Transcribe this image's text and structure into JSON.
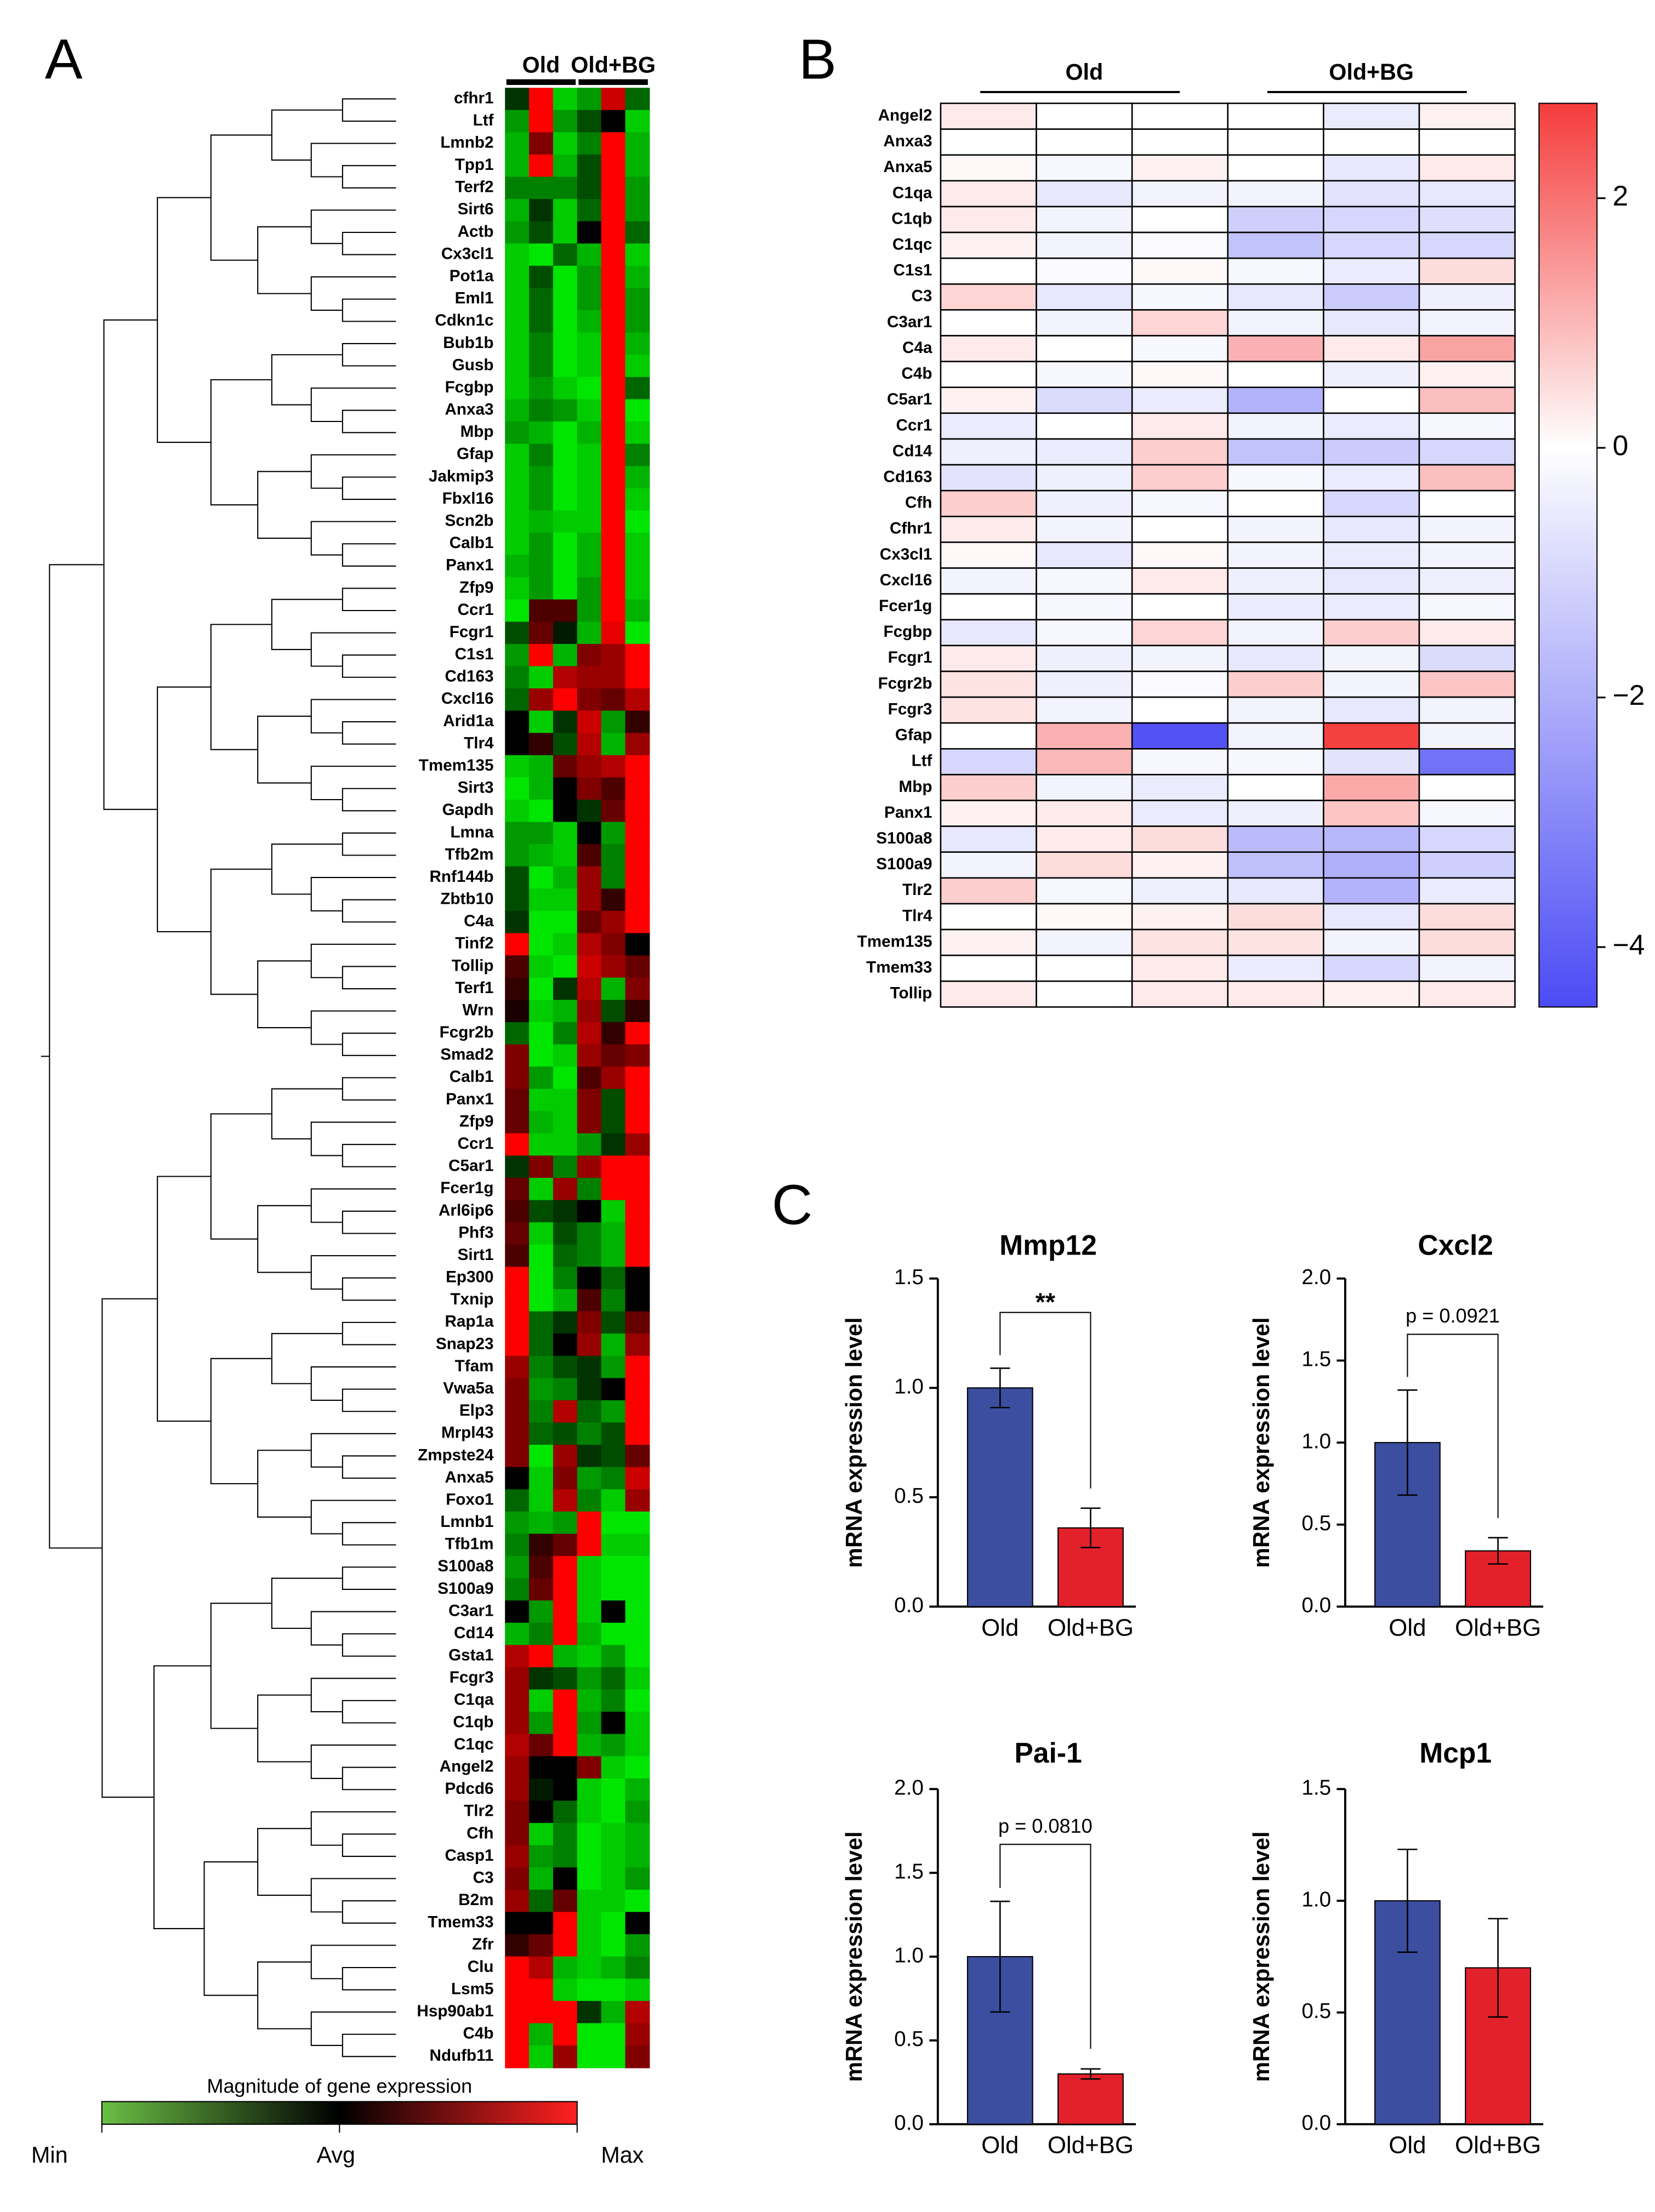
{
  "chart_data": [
    {
      "type": "heatmap",
      "panel_label": "A",
      "column_groups": [
        "Old",
        "Old+BG"
      ],
      "rows": [
        "cfhr1",
        "Ltf",
        "Lmnb2",
        "Tpp1",
        "Terf2",
        "Sirt6",
        "Actb",
        "Cx3cl1",
        "Pot1a",
        "Eml1",
        "Cdkn1c",
        "Bub1b",
        "Gusb",
        "Fcgbp",
        "Anxa3",
        "Mbp",
        "Gfap",
        "Jakmip3",
        "Fbxl16",
        "Scn2b",
        "Calb1",
        "Panx1",
        "Zfp9",
        "Ccr1",
        "Fcgr1",
        "C1s1",
        "Cd163",
        "Cxcl16",
        "Arid1a",
        "Tlr4",
        "Tmem135",
        "Sirt3",
        "Gapdh",
        "Lmna",
        "Tfb2m",
        "Rnf144b",
        "Zbtb10",
        "C4a",
        "Tinf2",
        "Tollip",
        "Terf1",
        "Wrn",
        "Fcgr2b",
        "Smad2",
        "Calb1",
        "Panx1",
        "Zfp9",
        "Ccr1",
        "C5ar1",
        "Fcer1g",
        "Arl6ip6",
        "Phf3",
        "Sirt1",
        "Ep300",
        "Txnip",
        "Rap1a",
        "Snap23",
        "Tfam",
        "Vwa5a",
        "Elp3",
        "Mrpl43",
        "Zmpste24",
        "Anxa5",
        "Foxo1",
        "Lmnb1",
        "Tfb1m",
        "S100a8",
        "S100a9",
        "C3ar1",
        "Cd14",
        "Gsta1",
        "Fcgr3",
        "C1qa",
        "C1qb",
        "C1qc",
        "Angel2",
        "Pdcd6",
        "Tlr2",
        "Cfh",
        "Casp1",
        "C3",
        "B2m",
        "Tmem33",
        "Zfr",
        "Clu",
        "Lsm5",
        "Hsp90ab1",
        "C4b",
        "Ndufb11"
      ],
      "values": [
        [
          -0.2,
          1,
          -0.8,
          -0.6,
          0.8,
          -0.4
        ],
        [
          -0.6,
          1,
          -0.6,
          -0.3,
          0,
          -0.8
        ],
        [
          -0.7,
          0.5,
          -0.8,
          -0.5,
          1,
          -0.7
        ],
        [
          -0.7,
          1,
          -0.7,
          -0.3,
          1,
          -0.7
        ],
        [
          -0.5,
          -0.5,
          -0.5,
          -0.3,
          1,
          -0.6
        ],
        [
          -0.7,
          -0.2,
          -0.8,
          -0.4,
          1,
          -0.6
        ],
        [
          -0.6,
          -0.3,
          -0.8,
          0,
          1,
          -0.4
        ],
        [
          -0.8,
          -0.9,
          -0.4,
          -0.7,
          1,
          -0.8
        ],
        [
          -0.8,
          -0.3,
          -0.9,
          -0.6,
          1,
          -0.7
        ],
        [
          -0.8,
          -0.4,
          -0.9,
          -0.6,
          1,
          -0.6
        ],
        [
          -0.8,
          -0.4,
          -0.9,
          -0.7,
          1,
          -0.6
        ],
        [
          -0.8,
          -0.5,
          -0.9,
          -0.8,
          1,
          -0.7
        ],
        [
          -0.8,
          -0.5,
          -0.9,
          -0.8,
          1,
          -0.8
        ],
        [
          -0.8,
          -0.6,
          -0.8,
          -0.9,
          1,
          -0.4
        ],
        [
          -0.7,
          -0.5,
          -0.6,
          -0.8,
          1,
          -0.9
        ],
        [
          -0.6,
          -0.7,
          -0.9,
          -0.7,
          1,
          -0.8
        ],
        [
          -0.8,
          -0.5,
          -0.9,
          -0.8,
          1,
          -0.5
        ],
        [
          -0.8,
          -0.6,
          -0.9,
          -0.8,
          1,
          -0.7
        ],
        [
          -0.8,
          -0.6,
          -0.9,
          -0.8,
          1,
          -0.8
        ],
        [
          -0.8,
          -0.7,
          -0.8,
          -0.8,
          1,
          -0.9
        ],
        [
          -0.8,
          -0.6,
          -0.9,
          -0.7,
          1,
          -0.8
        ],
        [
          -0.7,
          -0.6,
          -0.9,
          -0.7,
          1,
          -0.8
        ],
        [
          -0.8,
          -0.6,
          -0.9,
          -0.6,
          1,
          -0.8
        ],
        [
          -0.9,
          0.3,
          0.3,
          -0.6,
          1,
          -0.7
        ],
        [
          -0.3,
          0.4,
          -0.1,
          -0.7,
          0.9,
          -0.9
        ],
        [
          -0.6,
          1,
          -0.7,
          0.5,
          0.6,
          1
        ],
        [
          -0.5,
          -0.8,
          0.7,
          0.6,
          0.6,
          1
        ],
        [
          -0.4,
          0.6,
          1,
          0.5,
          0.4,
          0.7
        ],
        [
          0,
          -0.8,
          -0.2,
          0.8,
          -0.6,
          0.2
        ],
        [
          0,
          0.2,
          -0.3,
          0.7,
          -0.7,
          0.6
        ],
        [
          -0.8,
          -0.7,
          0.4,
          0.6,
          0.7,
          1
        ],
        [
          -0.9,
          -0.7,
          0,
          0.5,
          0.3,
          1
        ],
        [
          -0.8,
          -0.9,
          0,
          -0.2,
          0.4,
          1
        ],
        [
          -0.6,
          -0.6,
          -0.8,
          0,
          -0.6,
          1
        ],
        [
          -0.6,
          -0.7,
          -0.8,
          0.3,
          -0.5,
          1
        ],
        [
          -0.3,
          -0.9,
          -0.7,
          0.6,
          -0.5,
          1
        ],
        [
          -0.3,
          -0.8,
          -0.8,
          0.6,
          0.2,
          1
        ],
        [
          -0.2,
          -0.9,
          -0.9,
          0.4,
          0.6,
          1
        ],
        [
          1,
          -0.9,
          -0.8,
          0.7,
          0.5,
          0
        ],
        [
          0.3,
          -0.8,
          -0.9,
          0.8,
          0.6,
          0.4
        ],
        [
          0.2,
          -0.9,
          -0.2,
          0.7,
          -0.7,
          0.5
        ],
        [
          0.1,
          -0.8,
          -0.7,
          0.6,
          -0.3,
          0.2
        ],
        [
          -0.4,
          -0.9,
          -0.5,
          0.7,
          0.2,
          1
        ],
        [
          0.5,
          -0.9,
          -0.8,
          0.6,
          0.4,
          0.5
        ],
        [
          0.5,
          -0.6,
          -0.9,
          0.3,
          0.6,
          1
        ],
        [
          0.4,
          -0.8,
          -0.8,
          0.5,
          -0.3,
          1
        ],
        [
          0.4,
          -0.7,
          -0.8,
          0.5,
          -0.3,
          1
        ],
        [
          1,
          -0.8,
          -0.8,
          -0.6,
          -0.2,
          0.6
        ],
        [
          -0.2,
          0.5,
          -0.5,
          0.6,
          1,
          1
        ],
        [
          0.4,
          -0.8,
          0.6,
          -0.5,
          1,
          1
        ],
        [
          0.3,
          -0.3,
          -0.2,
          0,
          -0.8,
          1
        ],
        [
          0.4,
          -0.8,
          -0.3,
          -0.5,
          -0.7,
          1
        ],
        [
          0.3,
          -0.9,
          -0.4,
          -0.5,
          -0.7,
          1
        ],
        [
          1,
          -0.9,
          -0.5,
          0,
          -0.4,
          0
        ],
        [
          1,
          -0.9,
          -0.7,
          0.3,
          -0.5,
          0
        ],
        [
          1,
          -0.4,
          -0.2,
          0.5,
          -0.3,
          0.4
        ],
        [
          1,
          -0.4,
          0,
          0.6,
          -0.7,
          0.6
        ],
        [
          0.6,
          -0.5,
          -0.3,
          -0.2,
          -0.6,
          1
        ],
        [
          0.5,
          -0.6,
          -0.5,
          -0.2,
          0,
          1
        ],
        [
          0.5,
          -0.5,
          0.7,
          -0.4,
          -0.6,
          1
        ],
        [
          0.5,
          -0.4,
          -0.3,
          -0.5,
          -0.3,
          1
        ],
        [
          0.5,
          -0.9,
          0.6,
          -0.2,
          -0.3,
          0.4
        ],
        [
          0,
          -0.8,
          0.5,
          -0.6,
          -0.5,
          0.8
        ],
        [
          -0.4,
          -0.8,
          0.7,
          -0.5,
          -0.8,
          0.6
        ],
        [
          -0.6,
          -0.7,
          -0.6,
          1,
          -0.9,
          -0.9
        ],
        [
          -0.5,
          0.2,
          0.4,
          1,
          -0.8,
          -0.8
        ],
        [
          -0.6,
          0.3,
          1,
          -0.8,
          -0.9,
          -0.9
        ],
        [
          -0.5,
          0.4,
          1,
          -0.8,
          -0.9,
          -0.9
        ],
        [
          0,
          -0.6,
          1,
          -0.8,
          0,
          -0.9
        ],
        [
          -0.7,
          -0.5,
          1,
          -0.7,
          -0.9,
          -0.9
        ],
        [
          0.7,
          1,
          -0.7,
          -0.8,
          -0.6,
          -0.9
        ],
        [
          0.6,
          -0.2,
          -0.3,
          -0.6,
          -0.4,
          -0.8
        ],
        [
          0.6,
          -0.8,
          1,
          -0.7,
          -0.5,
          -0.9
        ],
        [
          0.6,
          -0.6,
          1,
          -0.6,
          0,
          -0.8
        ],
        [
          0.7,
          0.4,
          1,
          -0.7,
          -0.6,
          -0.8
        ],
        [
          0.6,
          0,
          0,
          0.5,
          -0.8,
          -0.9
        ],
        [
          0.6,
          -0.1,
          0,
          -0.8,
          -0.9,
          -0.7
        ],
        [
          0.5,
          0,
          -0.4,
          -0.8,
          -0.9,
          -0.6
        ],
        [
          0.5,
          -0.8,
          -0.5,
          -0.9,
          -0.8,
          -0.7
        ],
        [
          0.6,
          -0.6,
          -0.5,
          -0.9,
          -0.8,
          -0.7
        ],
        [
          0.5,
          -0.7,
          0,
          -0.9,
          -0.8,
          -0.6
        ],
        [
          0.6,
          -0.4,
          0.4,
          -0.8,
          -0.8,
          -0.9
        ],
        [
          0,
          0,
          1,
          -0.8,
          -0.9,
          0
        ],
        [
          0.2,
          0.4,
          1,
          -0.8,
          -0.9,
          -0.6
        ],
        [
          1,
          0.7,
          -0.7,
          -0.8,
          -0.7,
          -0.5
        ],
        [
          1,
          1,
          -0.8,
          -0.9,
          -0.9,
          -0.8
        ],
        [
          1,
          1,
          1,
          -0.2,
          -0.7,
          0.7
        ],
        [
          1,
          -0.7,
          1,
          -0.9,
          -0.9,
          0.6
        ],
        [
          1,
          -0.8,
          0.6,
          -0.9,
          -0.9,
          0.5
        ]
      ],
      "highlighted_rows": [
        36,
        37,
        42,
        73,
        74,
        84,
        85
      ],
      "highlight_color": "#e8141c",
      "colors": [
        "#00ff00",
        "#000000",
        "#ff0000"
      ],
      "clim": [
        -1,
        1
      ],
      "cell_border": false,
      "dendrogram": true,
      "colorbar": {
        "orientation": "horizontal",
        "title": "Magnitude of gene expression",
        "labels": [
          "Min",
          "Avg",
          "Max"
        ],
        "colors": [
          "#6abf45",
          "#000000",
          "#ff2020"
        ]
      }
    },
    {
      "type": "heatmap",
      "panel_label": "B",
      "column_groups": [
        "Old",
        "Old+BG"
      ],
      "rows": [
        "Angel2",
        "Anxa3",
        "Anxa5",
        "C1qa",
        "C1qb",
        "C1qc",
        "C1s1",
        "C3",
        "C3ar1",
        "C4a",
        "C4b",
        "C5ar1",
        "Ccr1",
        "Cd14",
        "Cd163",
        "Cfh",
        "Cfhr1",
        "Cx3cl1",
        "Cxcl16",
        "Fcer1g",
        "Fcgbp",
        "Fcgr1",
        "Fcgr2b",
        "Fcgr3",
        "Gfap",
        "Ltf",
        "Mbp",
        "Panx1",
        "S100a8",
        "S100a9",
        "Tlr2",
        "Tlr4",
        "Tmem135",
        "Tmem33",
        "Tollip"
      ],
      "values": [
        [
          0.3,
          0,
          0,
          0,
          -0.5,
          0.2
        ],
        [
          0,
          0,
          0,
          0,
          0,
          0
        ],
        [
          0.1,
          -0.2,
          0.2,
          0,
          -0.6,
          0.3
        ],
        [
          0.3,
          -0.6,
          -0.3,
          -0.3,
          -0.7,
          -0.6
        ],
        [
          0.3,
          -0.3,
          0,
          -1.2,
          -1,
          -0.8
        ],
        [
          0.2,
          -0.3,
          -0.1,
          -1.5,
          -1,
          -1
        ],
        [
          0,
          -0.1,
          0.1,
          -0.2,
          -0.5,
          0.5
        ],
        [
          0.6,
          -0.6,
          -0.2,
          -0.6,
          -1.3,
          -0.4
        ],
        [
          0,
          -0.3,
          0.6,
          -0.3,
          -0.6,
          -0.3
        ],
        [
          0.3,
          0,
          -0.2,
          1.1,
          0.3,
          1.3
        ],
        [
          0,
          -0.2,
          0.1,
          0,
          -0.4,
          0.2
        ],
        [
          0.2,
          -0.9,
          -0.5,
          -1.9,
          0,
          0.9
        ],
        [
          -0.5,
          0,
          0.3,
          -0.3,
          -0.5,
          -0.2
        ],
        [
          -0.4,
          -0.5,
          0.7,
          -1.5,
          -1.3,
          -1
        ],
        [
          -0.7,
          -0.4,
          0.7,
          -0.2,
          -0.5,
          0.9
        ],
        [
          0.7,
          -0.4,
          -0.2,
          0,
          -1,
          0
        ],
        [
          0.3,
          -0.3,
          0,
          -0.3,
          -0.6,
          -0.3
        ],
        [
          0.1,
          -0.6,
          0.1,
          -0.3,
          -0.5,
          -0.3
        ],
        [
          -0.3,
          -0.2,
          0.3,
          -0.4,
          -0.6,
          -0.4
        ],
        [
          0,
          -0.2,
          0,
          -0.5,
          -0.5,
          -0.2
        ],
        [
          -0.6,
          -0.2,
          0.6,
          -0.3,
          0.7,
          0.3
        ],
        [
          0.3,
          -0.4,
          -0.3,
          -0.6,
          -0.3,
          -0.9
        ],
        [
          0.4,
          -0.4,
          -0.1,
          0.7,
          -0.3,
          0.8
        ],
        [
          0.4,
          -0.3,
          0,
          -0.3,
          -0.6,
          -0.3
        ],
        [
          0,
          1.1,
          -4.3,
          -0.3,
          2.7,
          -0.3
        ],
        [
          -1,
          1,
          -0.2,
          -0.2,
          -0.7,
          -3.5
        ],
        [
          0.7,
          -0.3,
          -0.5,
          0,
          1.2,
          0
        ],
        [
          0.2,
          0.3,
          -0.5,
          -0.4,
          0.8,
          -0.2
        ],
        [
          -0.6,
          0.3,
          0.5,
          -1.7,
          -1.8,
          -1
        ],
        [
          -0.3,
          0.5,
          0.2,
          -1.6,
          -2,
          -1.2
        ],
        [
          0.7,
          -0.2,
          -0.4,
          -0.6,
          -1.9,
          -0.5
        ],
        [
          0,
          0.1,
          0.2,
          0.5,
          -0.6,
          0.5
        ],
        [
          0.2,
          -0.3,
          0.4,
          0.4,
          -0.3,
          0.5
        ],
        [
          0,
          0,
          0.3,
          -0.5,
          -1,
          -0.3
        ],
        [
          0.3,
          0,
          0.3,
          0.3,
          0.2,
          0.3
        ]
      ],
      "highlighted_rows": [
        4,
        5,
        9,
        22,
        28,
        29
      ],
      "highlight_color": "#e8141c",
      "colors": [
        "#4b4bf5",
        "#ffffff",
        "#f53c3c"
      ],
      "clim": [
        -4.48,
        2.76
      ],
      "cell_border": true,
      "colorbar": {
        "orientation": "vertical",
        "ticks": [
          2,
          0,
          {
            "value": -2,
            "label": "−2"
          },
          {
            "value": -4,
            "label": "−4"
          }
        ]
      }
    },
    {
      "type": "bar",
      "panel_label": "C",
      "title": "Mmp12",
      "ylabel": "mRNA expression level",
      "categories": [
        "Old",
        "Old+BG"
      ],
      "values": [
        1.0,
        0.36
      ],
      "errors": [
        0.09,
        0.09
      ],
      "colors": [
        "#3b4ea0",
        "#e3212a"
      ],
      "ylim": [
        0,
        1.5
      ],
      "yticks": [
        {
          "value": 0,
          "label": "0.0"
        },
        0.5,
        {
          "value": 1,
          "label": "1.0"
        },
        1.5
      ],
      "annotation": "**"
    },
    {
      "type": "bar",
      "title": "Cxcl2",
      "ylabel": "mRNA expression level",
      "categories": [
        "Old",
        "Old+BG"
      ],
      "values": [
        1.0,
        0.34
      ],
      "errors": [
        0.32,
        0.08
      ],
      "colors": [
        "#3b4ea0",
        "#e3212a"
      ],
      "ylim": [
        0,
        2
      ],
      "yticks": [
        {
          "value": 0,
          "label": "0.0"
        },
        0.5,
        {
          "value": 1,
          "label": "1.0"
        },
        1.5,
        {
          "value": 2,
          "label": "2.0"
        }
      ],
      "annotation": "p = 0.0921"
    },
    {
      "type": "bar",
      "title": "Pai-1",
      "ylabel": "mRNA expression level",
      "categories": [
        "Old",
        "Old+BG"
      ],
      "values": [
        1.0,
        0.3
      ],
      "errors": [
        0.33,
        0.03
      ],
      "colors": [
        "#3b4ea0",
        "#e3212a"
      ],
      "ylim": [
        0,
        2
      ],
      "yticks": [
        {
          "value": 0,
          "label": "0.0"
        },
        0.5,
        {
          "value": 1,
          "label": "1.0"
        },
        1.5,
        {
          "value": 2,
          "label": "2.0"
        }
      ],
      "annotation": "p = 0.0810"
    },
    {
      "type": "bar",
      "title": "Mcp1",
      "ylabel": "mRNA expression level",
      "categories": [
        "Old",
        "Old+BG"
      ],
      "values": [
        1.0,
        0.7
      ],
      "errors": [
        0.23,
        0.22
      ],
      "colors": [
        "#3b4ea0",
        "#e3212a"
      ],
      "ylim": [
        0,
        1.5
      ],
      "yticks": [
        {
          "value": 0,
          "label": "0.0"
        },
        0.5,
        {
          "value": 1,
          "label": "1.0"
        },
        1.5
      ]
    }
  ]
}
